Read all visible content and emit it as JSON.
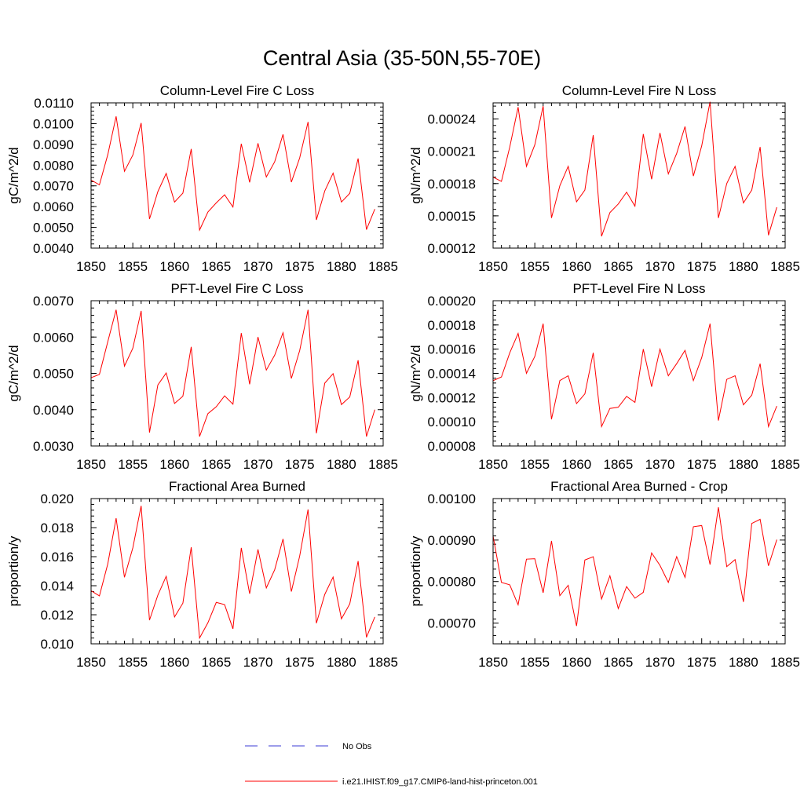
{
  "figure": {
    "title": "Central Asia (35-50N,55-70E)",
    "years": [
      1850,
      1851,
      1852,
      1853,
      1854,
      1855,
      1856,
      1857,
      1858,
      1859,
      1860,
      1861,
      1862,
      1863,
      1864,
      1865,
      1866,
      1867,
      1868,
      1869,
      1870,
      1871,
      1872,
      1873,
      1874,
      1875,
      1876,
      1877,
      1878,
      1879,
      1880,
      1881,
      1882,
      1883,
      1884
    ],
    "legend": {
      "obs_label": "No Obs",
      "obs_color": "#3b3bd6",
      "model_label": "i.e21.IHIST.f09_g17.CMIP6-land-hist-princeton.001",
      "model_color": "#ff0000"
    }
  },
  "chart_data": [
    {
      "type": "line",
      "title": "Column-Level Fire C Loss",
      "ylabel": "gC/m^2/d",
      "xlim": [
        1850,
        1885
      ],
      "ylim": [
        0.004,
        0.011
      ],
      "xticks": [
        "1850",
        "1855",
        "1860",
        "1865",
        "1870",
        "1875",
        "1880",
        "1885"
      ],
      "yticks": [
        "0.0040",
        "0.0050",
        "0.0060",
        "0.0070",
        "0.0080",
        "0.0090",
        "0.0100",
        "0.0110"
      ],
      "series": [
        {
          "values": [
            0.00728,
            0.00705,
            0.0085,
            0.01035,
            0.0077,
            0.00848,
            0.01003,
            0.0054,
            0.00672,
            0.0076,
            0.00622,
            0.00665,
            0.00878,
            0.00487,
            0.00574,
            0.00618,
            0.00657,
            0.00598,
            0.00903,
            0.00717,
            0.00905,
            0.00743,
            0.00816,
            0.00948,
            0.00718,
            0.00835,
            0.01008,
            0.00536,
            0.00675,
            0.00761,
            0.00622,
            0.00664,
            0.00832,
            0.00489,
            0.00588
          ]
        }
      ]
    },
    {
      "type": "line",
      "title": "Column-Level Fire N Loss",
      "ylabel": "gN/m^2/d",
      "xlim": [
        1850,
        1885
      ],
      "ylim": [
        0.00012,
        0.000255
      ],
      "xticks": [
        "1850",
        "1855",
        "1860",
        "1865",
        "1870",
        "1875",
        "1880",
        "1885"
      ],
      "yticks": [
        "0.00012",
        "0.00015",
        "0.00018",
        "0.00021",
        "0.00024"
      ],
      "series": [
        {
          "values": [
            0.000186,
            0.000182,
            0.000214,
            0.000251,
            0.000196,
            0.000216,
            0.000252,
            0.000148,
            0.000178,
            0.000196,
            0.000163,
            0.000174,
            0.000225,
            0.000131,
            0.000153,
            0.000161,
            0.000172,
            0.000159,
            0.000226,
            0.000184,
            0.000227,
            0.000189,
            0.000208,
            0.000233,
            0.000187,
            0.000215,
            0.000256,
            0.000148,
            0.00018,
            0.000196,
            0.000162,
            0.000174,
            0.000214,
            0.000132,
            0.000158
          ]
        }
      ]
    },
    {
      "type": "line",
      "title": "PFT-Level Fire C Loss",
      "ylabel": "gC/m^2/d",
      "xlim": [
        1850,
        1885
      ],
      "ylim": [
        0.003,
        0.007
      ],
      "xticks": [
        "1850",
        "1855",
        "1860",
        "1865",
        "1870",
        "1875",
        "1880",
        "1885"
      ],
      "yticks": [
        "0.0030",
        "0.0040",
        "0.0050",
        "0.0060",
        "0.0070"
      ],
      "series": [
        {
          "values": [
            0.00488,
            0.00497,
            0.00587,
            0.00675,
            0.0052,
            0.00569,
            0.00672,
            0.00337,
            0.00468,
            0.00501,
            0.00417,
            0.00437,
            0.00573,
            0.00326,
            0.00389,
            0.00408,
            0.00438,
            0.00415,
            0.00611,
            0.0047,
            0.006,
            0.00509,
            0.0055,
            0.00612,
            0.00486,
            0.00563,
            0.00675,
            0.00335,
            0.00473,
            0.00499,
            0.00414,
            0.00435,
            0.00536,
            0.00326,
            0.004
          ]
        }
      ]
    },
    {
      "type": "line",
      "title": "PFT-Level Fire N Loss",
      "ylabel": "gN/m^2/d",
      "xlim": [
        1850,
        1885
      ],
      "ylim": [
        8e-05,
        0.0002
      ],
      "xticks": [
        "1850",
        "1855",
        "1860",
        "1865",
        "1870",
        "1875",
        "1880",
        "1885"
      ],
      "yticks": [
        "0.00008",
        "0.00010",
        "0.00012",
        "0.00014",
        "0.00016",
        "0.00018",
        "0.00020"
      ],
      "series": [
        {
          "values": [
            0.000134,
            0.000137,
            0.000157,
            0.000173,
            0.00014,
            0.000154,
            0.000181,
            0.000102,
            0.000134,
            0.000138,
            0.000115,
            0.000123,
            0.000157,
            9.6e-05,
            0.000111,
            0.000112,
            0.000121,
            0.000116,
            0.00016,
            0.000129,
            0.00016,
            0.000138,
            0.000148,
            0.000159,
            0.000134,
            0.000153,
            0.000181,
            0.000101,
            0.000135,
            0.000138,
            0.000114,
            0.000122,
            0.000148,
            9.6e-05,
            0.000113
          ]
        }
      ]
    },
    {
      "type": "line",
      "title": "Fractional Area Burned",
      "ylabel": "proportion/y",
      "xlim": [
        1850,
        1885
      ],
      "ylim": [
        0.01,
        0.02
      ],
      "xticks": [
        "1850",
        "1855",
        "1860",
        "1865",
        "1870",
        "1875",
        "1880",
        "1885"
      ],
      "yticks": [
        "0.010",
        "0.012",
        "0.014",
        "0.016",
        "0.018",
        "0.020"
      ],
      "series": [
        {
          "values": [
            0.01365,
            0.0133,
            0.0155,
            0.01865,
            0.01458,
            0.0166,
            0.0195,
            0.01163,
            0.01335,
            0.01465,
            0.01185,
            0.0128,
            0.01665,
            0.0104,
            0.01145,
            0.01285,
            0.0127,
            0.01103,
            0.0166,
            0.01345,
            0.0165,
            0.01385,
            0.0151,
            0.01722,
            0.0136,
            0.01605,
            0.01925,
            0.01142,
            0.0134,
            0.0146,
            0.01172,
            0.01275,
            0.0157,
            0.01045,
            0.01185
          ]
        }
      ]
    },
    {
      "type": "line",
      "title": "Fractional Area Burned - Crop",
      "ylabel": "proportion/y",
      "xlim": [
        1850,
        1885
      ],
      "ylim": [
        0.00065,
        0.001
      ],
      "xticks": [
        "1850",
        "1855",
        "1860",
        "1865",
        "1870",
        "1875",
        "1880",
        "1885"
      ],
      "yticks": [
        "0.00070",
        "0.00080",
        "0.00090",
        "0.00100"
      ],
      "series": [
        {
          "values": [
            0.00091,
            0.000798,
            0.000792,
            0.000744,
            0.000854,
            0.000855,
            0.000773,
            0.000898,
            0.000766,
            0.000791,
            0.000693,
            0.000852,
            0.00086,
            0.000758,
            0.000814,
            0.000735,
            0.000788,
            0.00076,
            0.000774,
            0.000869,
            0.000839,
            0.000798,
            0.00086,
            0.00081,
            0.000932,
            0.000935,
            0.000841,
            0.000979,
            0.000836,
            0.000853,
            0.000751,
            0.00094,
            0.00095,
            0.000838,
            0.000901
          ]
        }
      ]
    }
  ]
}
